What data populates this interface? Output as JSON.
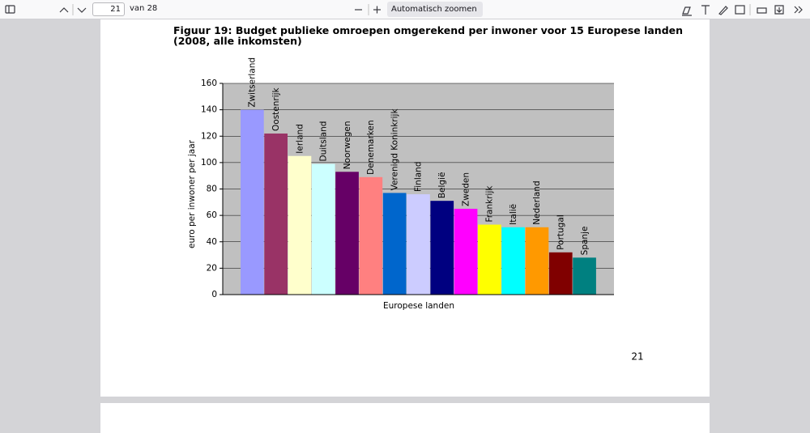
{
  "toolbar": {
    "page_input": "21",
    "page_count": "van 28",
    "zoom": "Automatisch zoomen"
  },
  "chart_data": {
    "type": "bar",
    "title": [
      "Figuur 19: Budget publieke omroepen omgerekend per inwoner voor 15 Europese landen",
      "(2008, alle inkomsten)"
    ],
    "x_label": "Europese landen",
    "y_label": "euro per inwoner per jaar",
    "categories": [
      "Zwitserland",
      "Oostenrijk",
      "Ierland",
      "Duitsland",
      "Noorwegen",
      "Denemarken",
      "Verenigd Koninkrijk",
      "Finland",
      "België",
      "Zweden",
      "Frankrijk",
      "Italië",
      "Nederland",
      "Portugal",
      "Spanje"
    ],
    "values": [
      140,
      122,
      105,
      99,
      93,
      89,
      77,
      76,
      71,
      65,
      53,
      51,
      51,
      32,
      28
    ],
    "colors": [
      "#9999ff",
      "#993366",
      "#ffffcc",
      "#ccffff",
      "#660066",
      "#ff8080",
      "#0066cc",
      "#ccccff",
      "#000080",
      "#ff00ff",
      "#ffff00",
      "#00ffff",
      "#ff9900",
      "#800000",
      "#008080"
    ],
    "ylim": [
      0,
      160
    ],
    "yticks": [
      0,
      20,
      40,
      60,
      80,
      100,
      120,
      140,
      160
    ],
    "grid": true
  },
  "page_number": "21"
}
